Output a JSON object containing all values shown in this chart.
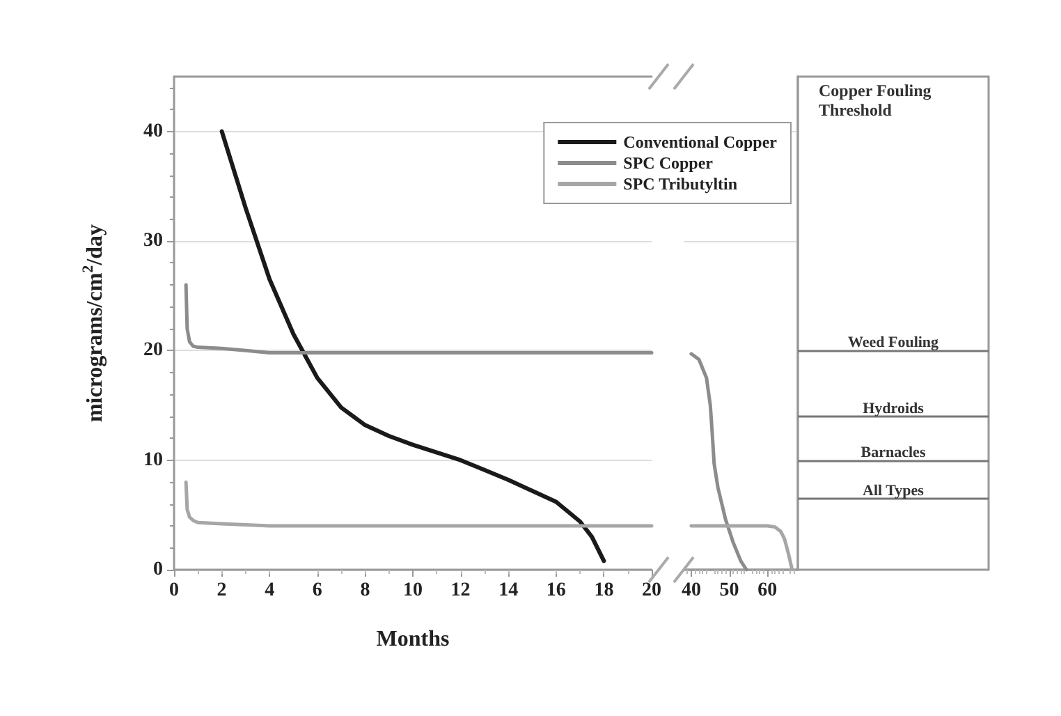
{
  "chart_data": [
    {
      "type": "line",
      "xlabel": "Months",
      "ylabel": "micrograms/cm$^{2}$/day",
      "xlim": [
        0,
        20
      ],
      "xticks": [
        0,
        2,
        4,
        6,
        8,
        10,
        12,
        14,
        16,
        18,
        20
      ],
      "ylim": [
        0,
        45
      ],
      "yticks": [
        0,
        10,
        20,
        30,
        40
      ],
      "grid": "y",
      "legend": "top right",
      "marker": "none",
      "series": [
        {
          "name": "Conventional Copper",
          "color": "#1a1a1a",
          "x": [
            2,
            3,
            4,
            5,
            5.5,
            6,
            7,
            8,
            9,
            10,
            11,
            12,
            13,
            14,
            15,
            16,
            17,
            17.5,
            18
          ],
          "values": [
            40,
            33,
            26.5,
            21.5,
            19.5,
            17.5,
            14.8,
            13.2,
            12.2,
            11.4,
            10.7,
            10,
            9.1,
            8.2,
            7.2,
            6.2,
            4.4,
            3,
            0.8
          ]
        },
        {
          "name": "SPC Copper",
          "color": "#8c8c8c",
          "x": [
            0.5,
            0.55,
            0.65,
            0.8,
            1,
            2,
            3,
            4,
            6,
            10,
            15,
            20
          ],
          "values": [
            26,
            22,
            20.8,
            20.4,
            20.3,
            20.2,
            20,
            19.8,
            19.8,
            19.8,
            19.8,
            19.8
          ]
        },
        {
          "name": "SPC Tributyltin",
          "color": "#a6a6a6",
          "x": [
            0.5,
            0.55,
            0.65,
            0.8,
            1,
            2,
            4,
            10,
            20
          ],
          "values": [
            8,
            5.5,
            4.8,
            4.5,
            4.3,
            4.2,
            4,
            4,
            4
          ]
        }
      ]
    },
    {
      "type": "line",
      "xlim": [
        38,
        68
      ],
      "xticks": [
        40,
        50,
        60
      ],
      "ylim": [
        0,
        45
      ],
      "yticks": [
        0,
        10,
        20,
        30,
        40
      ],
      "tick_labels": "x",
      "grid": "y",
      "marker": "none",
      "series": [
        {
          "color": "#8c8c8c",
          "x": [
            40,
            42,
            44,
            45,
            45.5,
            46,
            47,
            49,
            51,
            53,
            54.5
          ],
          "values": [
            19.7,
            19.2,
            17.5,
            15,
            12.5,
            9.7,
            7.5,
            4.6,
            2.5,
            0.8,
            0
          ]
        },
        {
          "color": "#a6a6a6",
          "x": [
            40,
            50,
            60,
            62,
            63.5,
            64.5,
            65.5,
            66.5
          ],
          "values": [
            4,
            4,
            4,
            3.9,
            3.5,
            2.8,
            1.5,
            0
          ]
        }
      ],
      "ref_lines": [
        {
          "axis": "y",
          "value": 20,
          "label": "Weed Fouling"
        },
        {
          "axis": "y",
          "value": 14,
          "label": "Hydroids"
        },
        {
          "axis": "y",
          "value": 10,
          "label": "Barnacles"
        },
        {
          "axis": "y",
          "value": 6.5,
          "label": "All Types"
        }
      ],
      "annotations": [
        "Copper Fouling Threshold"
      ]
    }
  ]
}
